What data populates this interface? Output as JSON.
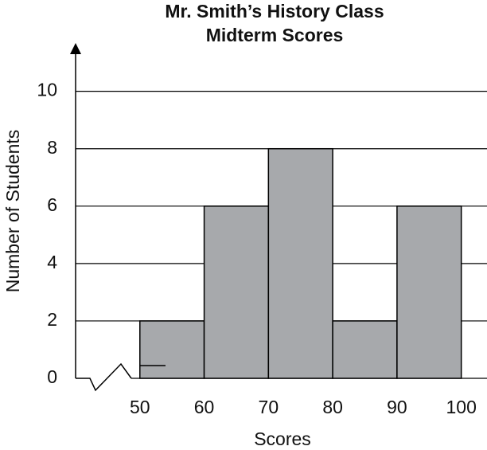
{
  "chart_data": {
    "type": "histogram",
    "title": [
      "Mr. Smith’s History Class",
      "Midterm Scores"
    ],
    "x_label": "Scores",
    "y_label": "Number of Students",
    "bins": [
      50,
      60,
      70,
      80,
      90,
      100
    ],
    "values": [
      2,
      6,
      8,
      2,
      6
    ],
    "color": "#a7a9ac",
    "xlim": [
      40,
      104
    ],
    "xticks": [
      50,
      60,
      70,
      80,
      90,
      100
    ],
    "ylim": [
      0,
      11.6
    ],
    "yticks": [
      0,
      2,
      4,
      6,
      8,
      10
    ],
    "grid": true
  }
}
